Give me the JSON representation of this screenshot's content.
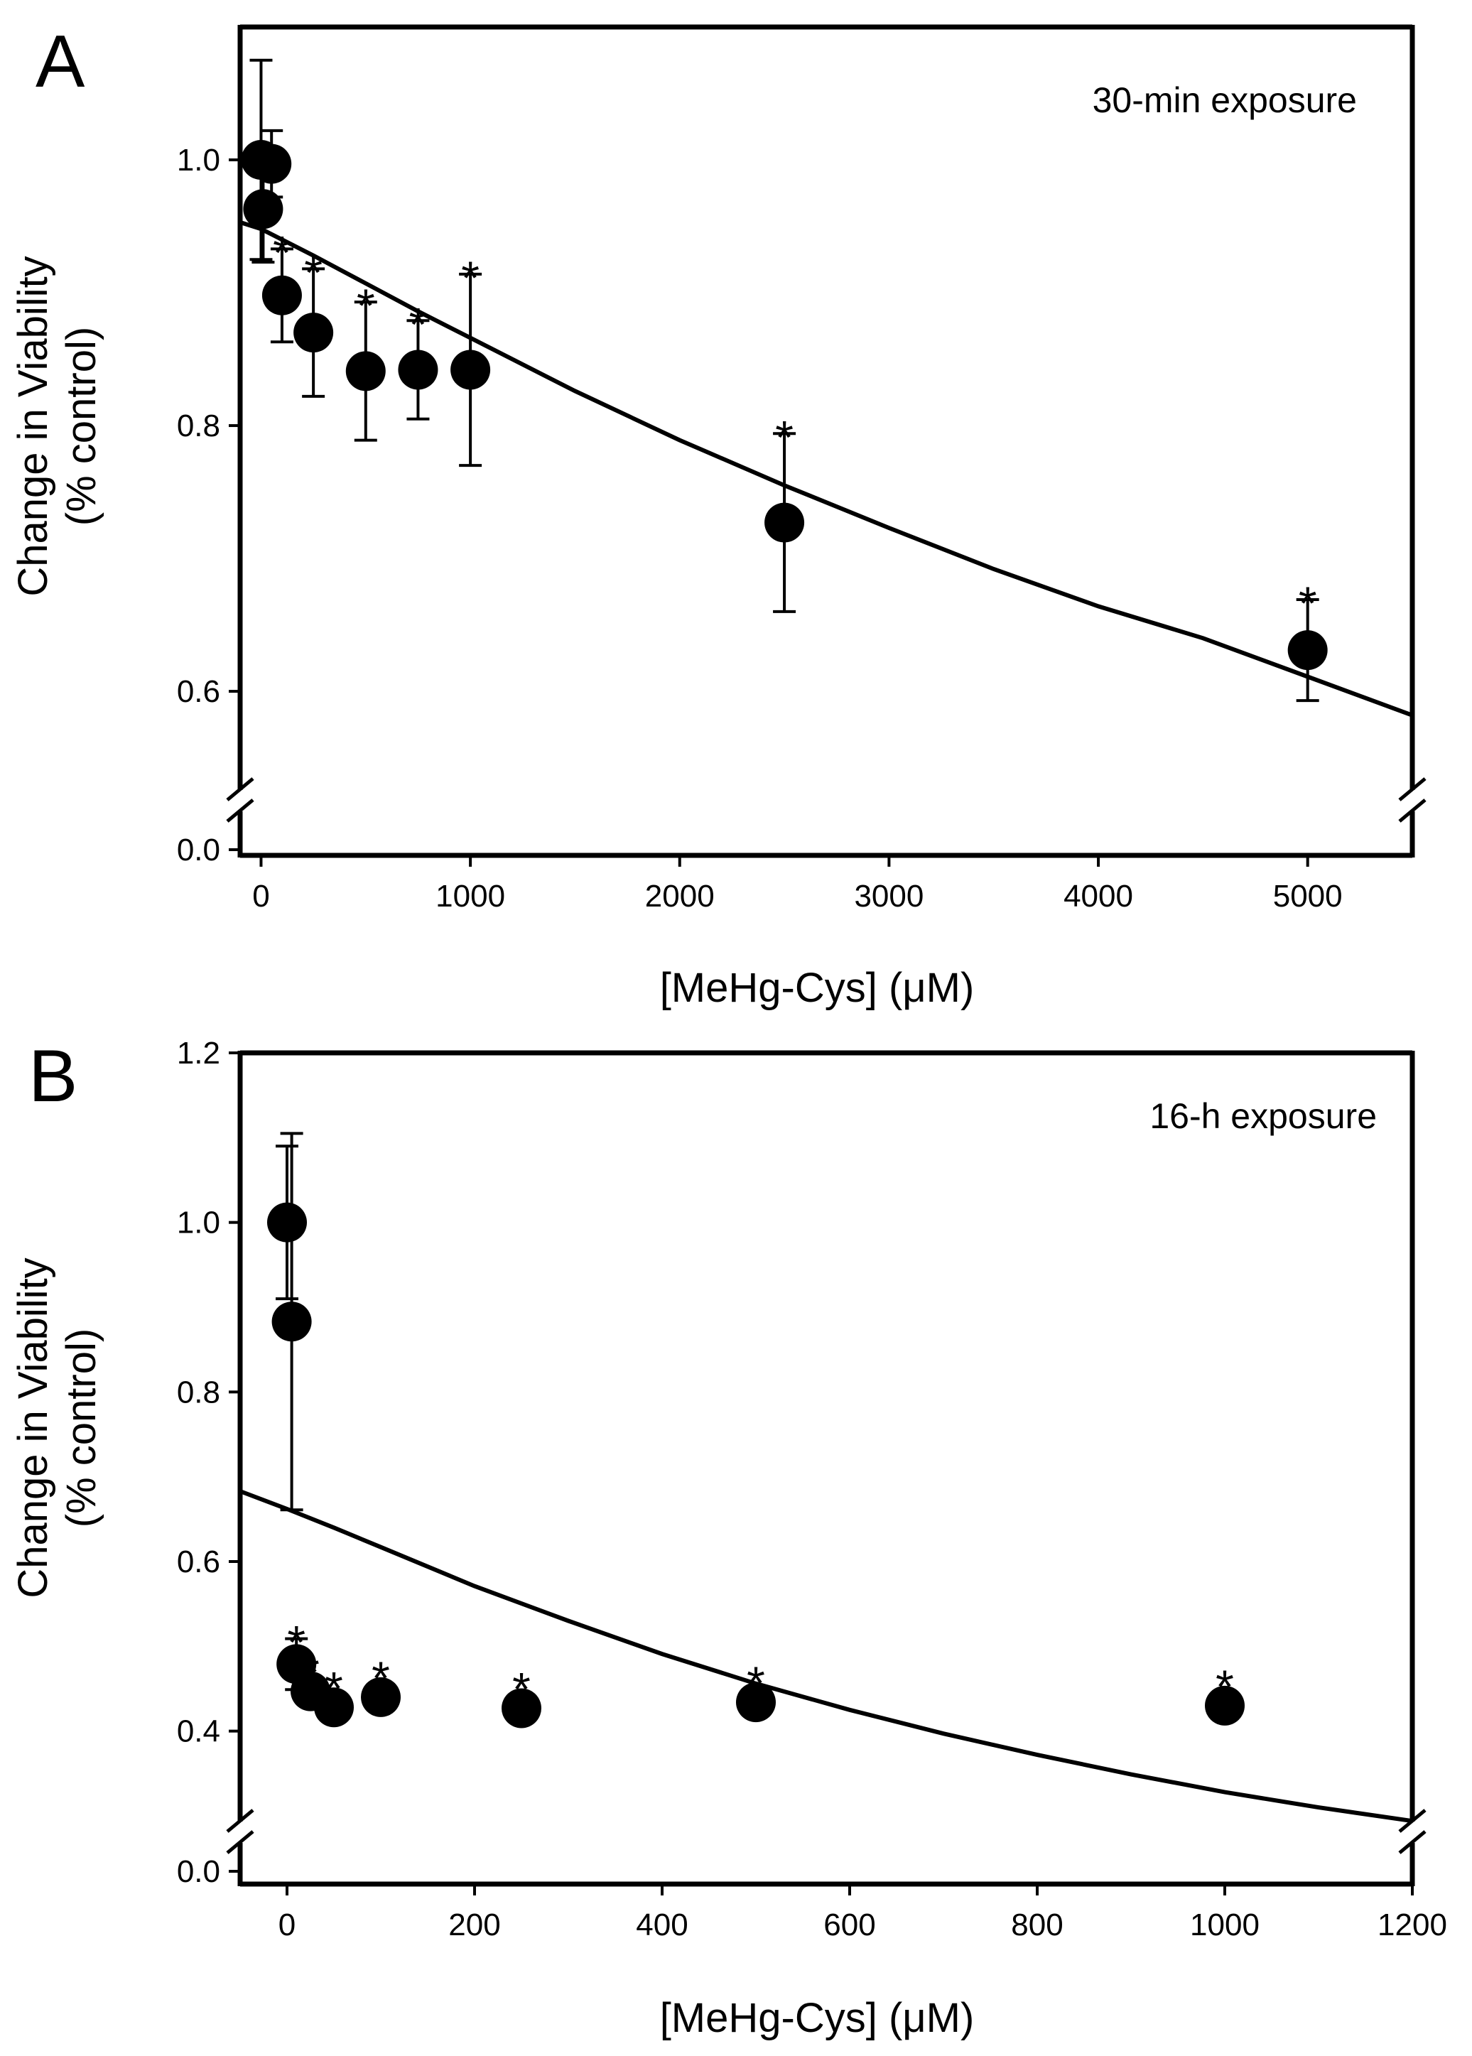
{
  "figure": {
    "panels": [
      {
        "letter": "A",
        "annotation": "30-min exposure"
      },
      {
        "letter": "B",
        "annotation": "16-h exposure"
      }
    ]
  },
  "chart_data": [
    {
      "type": "scatter",
      "panel": "A",
      "annotation": "30-min exposure",
      "xlabel": "[MeHg-Cys] (μM)",
      "ylabel": "Change in Viability",
      "ylabel_sub": "(% control)",
      "xlim": [
        -100,
        5500
      ],
      "ylim_upper": [
        0.53,
        1.1
      ],
      "y_axis_break": true,
      "y_break_floor_label": "0.0",
      "x_ticks": [
        0,
        1000,
        2000,
        3000,
        4000,
        5000
      ],
      "y_ticks": [
        0.6,
        0.8,
        1.0
      ],
      "y_tick_labels": [
        "0.6",
        "0.8",
        "1.0"
      ],
      "points": [
        {
          "x": 0,
          "y": 1.0,
          "err": 0.075,
          "sig": false
        },
        {
          "x": 10,
          "y": 0.963,
          "err": 0.04,
          "sig": false
        },
        {
          "x": 50,
          "y": 0.997,
          "err": 0.025,
          "sig": false
        },
        {
          "x": 100,
          "y": 0.898,
          "err": 0.035,
          "sig": true
        },
        {
          "x": 250,
          "y": 0.87,
          "err": 0.048,
          "sig": true
        },
        {
          "x": 500,
          "y": 0.841,
          "err": 0.052,
          "sig": true
        },
        {
          "x": 750,
          "y": 0.842,
          "err": 0.037,
          "sig": true
        },
        {
          "x": 1000,
          "y": 0.842,
          "err": 0.072,
          "sig": true
        },
        {
          "x": 2500,
          "y": 0.727,
          "err": 0.067,
          "sig": true
        },
        {
          "x": 5000,
          "y": 0.631,
          "err": 0.038,
          "sig": true
        }
      ],
      "fit_curve": {
        "x": [
          -100,
          0,
          250,
          500,
          750,
          1000,
          1500,
          2000,
          2500,
          3000,
          3500,
          4000,
          4500,
          5000,
          5500
        ],
        "y": [
          0.953,
          0.948,
          0.928,
          0.907,
          0.886,
          0.866,
          0.826,
          0.789,
          0.755,
          0.723,
          0.692,
          0.664,
          0.64,
          0.611,
          0.582
        ]
      },
      "significance_marker": "*"
    },
    {
      "type": "scatter",
      "panel": "B",
      "annotation": "16-h exposure",
      "xlabel": "[MeHg-Cys] (μM)",
      "ylabel": "Change in Viability",
      "ylabel_sub": "(% control)",
      "xlim": [
        -50,
        1200
      ],
      "ylim_upper": [
        0.3,
        1.2
      ],
      "y_axis_break": true,
      "y_break_floor_label": "0.0",
      "x_ticks": [
        0,
        200,
        400,
        600,
        800,
        1000,
        1200
      ],
      "y_ticks": [
        0.4,
        0.6,
        0.8,
        1.0,
        1.2
      ],
      "y_tick_labels": [
        "0.4",
        "0.6",
        "0.8",
        "1.0",
        "1.2"
      ],
      "points": [
        {
          "x": 0,
          "y": 1.0,
          "err": 0.09,
          "sig": false
        },
        {
          "x": 5,
          "y": 0.883,
          "err": 0.222,
          "sig": false
        },
        {
          "x": 10,
          "y": 0.479,
          "err": 0.03,
          "sig": true
        },
        {
          "x": 25,
          "y": 0.447,
          "err": 0.0,
          "sig": true
        },
        {
          "x": 50,
          "y": 0.428,
          "err": 0.0,
          "sig": true
        },
        {
          "x": 100,
          "y": 0.44,
          "err": 0.0,
          "sig": true
        },
        {
          "x": 250,
          "y": 0.427,
          "err": 0.0,
          "sig": true
        },
        {
          "x": 500,
          "y": 0.434,
          "err": 0.0,
          "sig": true
        },
        {
          "x": 1000,
          "y": 0.43,
          "err": 0.0,
          "sig": true
        }
      ],
      "fit_curve": {
        "x": [
          -50,
          0,
          50,
          100,
          200,
          300,
          400,
          500,
          600,
          700,
          800,
          900,
          1000,
          1100,
          1200
        ],
        "y": [
          0.683,
          0.662,
          0.64,
          0.617,
          0.571,
          0.53,
          0.491,
          0.456,
          0.425,
          0.397,
          0.372,
          0.349,
          0.328,
          0.31,
          0.294
        ]
      },
      "significance_marker": "*"
    }
  ]
}
